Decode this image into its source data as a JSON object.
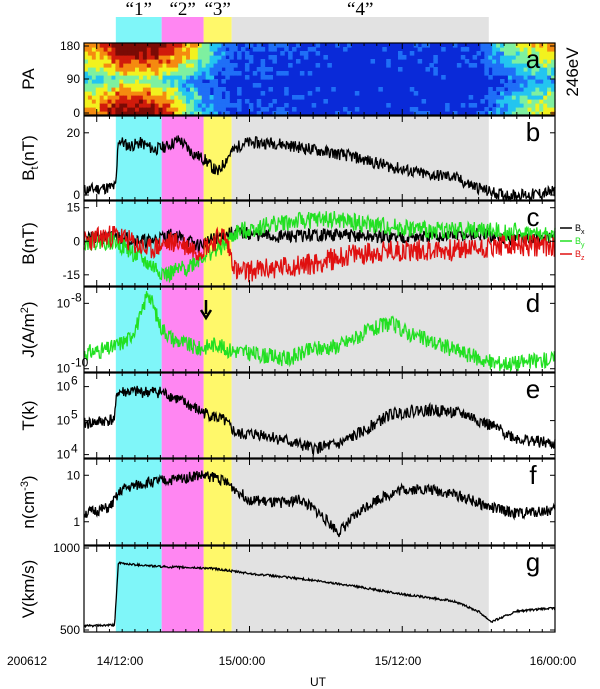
{
  "figure": {
    "date_label": "200612",
    "x_axis_label": "UT",
    "x_tick_labels": [
      "14/12:00",
      "15/00:00",
      "15/12:00",
      "16/00:00"
    ],
    "energy_label": "246eV"
  },
  "intervals": [
    {
      "label": "“1”",
      "start_h": 1.5,
      "end_h": 5.1,
      "color": "#7ff6f9"
    },
    {
      "label": "“2”",
      "start_h": 5.1,
      "end_h": 8.4,
      "color": "#ff86f2"
    },
    {
      "label": "“3”",
      "start_h": 8.4,
      "end_h": 10.6,
      "color": "#fff86a"
    },
    {
      "label": "“4”",
      "start_h": 10.6,
      "end_h": 30.8,
      "color": "#e2e2e2"
    }
  ],
  "panels": [
    {
      "letter": "a",
      "ylabel": "PA",
      "ticks": [
        "0",
        "90",
        "180"
      ]
    },
    {
      "letter": "b",
      "ylabel": "B",
      "ylabel_sub": "t",
      "ylabel_unit": "(nT)",
      "ticks": [
        "0",
        "20"
      ]
    },
    {
      "letter": "c",
      "ylabel": "B(nT)",
      "ticks": [
        "-15",
        "0",
        "15"
      ]
    },
    {
      "letter": "d",
      "ylabel": "J(A/m",
      "ylabel_sup": "2",
      "ylabel_end": ")",
      "ticks": [
        "10",
        "10"
      ],
      "tick_exps": [
        "-10",
        "-8"
      ]
    },
    {
      "letter": "e",
      "ylabel": "T(k)",
      "ticks": [
        "10",
        "10",
        "10"
      ],
      "tick_exps": [
        "4",
        "5",
        "6"
      ]
    },
    {
      "letter": "f",
      "ylabel": "n(cm",
      "ylabel_sup": "-3",
      "ylabel_end": ")",
      "ticks": [
        "1",
        "10"
      ]
    },
    {
      "letter": "g",
      "ylabel": "V(km/s)",
      "ticks": [
        "500",
        "1000"
      ]
    }
  ],
  "legend": [
    {
      "label": "B",
      "sub": "x",
      "color": "#000000"
    },
    {
      "label": "B",
      "sub": "y",
      "color": "#22e022"
    },
    {
      "label": "B",
      "sub": "z",
      "color": "#e01010"
    }
  ],
  "chart_data": [
    {
      "type": "heatmap",
      "panel": "a",
      "title": "",
      "xlabel": "UT",
      "ylabel": "PA",
      "xlim_h": [
        -1,
        36
      ],
      "ylim": [
        0,
        180
      ],
      "note_values": {
        "columns_h": [
          0,
          1.5,
          3,
          5,
          7,
          9,
          10.5,
          20,
          30,
          32,
          34,
          36
        ],
        "low_pitch_level": [
          0.7,
          0.95,
          1.0,
          0.9,
          0.5,
          0.25,
          0.1,
          0.05,
          0.08,
          0.3,
          0.5,
          0.6
        ],
        "high_pitch_level": [
          0.7,
          0.95,
          1.0,
          0.95,
          0.7,
          0.4,
          0.15,
          0.05,
          0.1,
          0.35,
          0.55,
          0.65
        ]
      }
    },
    {
      "type": "line",
      "panel": "b",
      "ylabel": "Bt (nT)",
      "ylim": [
        0,
        25
      ],
      "x_unit": "hours from 2006-12-14 12:00 UT",
      "x": [
        -1,
        0.5,
        1.5,
        1.7,
        2.5,
        3.5,
        4.5,
        5.5,
        6.5,
        7.5,
        8.5,
        9.5,
        10.5,
        11.5,
        14,
        17,
        20,
        23,
        26,
        28,
        29,
        30.8,
        32,
        34,
        36
      ],
      "values": [
        3,
        3.5,
        4,
        18,
        16,
        17,
        15,
        16,
        18,
        14,
        12,
        8,
        14,
        17,
        17,
        15,
        13,
        10,
        7.5,
        7,
        5,
        2.5,
        1.5,
        1.5,
        2.5
      ],
      "noise": 1.8
    },
    {
      "type": "line",
      "panel": "c",
      "ylim": [
        -20,
        18
      ],
      "x_unit": "hours from 2006-12-14 12:00 UT",
      "series": [
        {
          "name": "Bx",
          "color": "#000000",
          "x": [
            -1,
            1.5,
            4,
            6,
            8,
            10,
            11,
            14,
            18,
            22,
            26,
            30,
            33,
            36
          ],
          "values": [
            1,
            2,
            0,
            3,
            -2,
            3,
            4,
            2,
            3,
            2,
            2,
            3,
            1,
            2
          ],
          "noise": 3
        },
        {
          "name": "By",
          "color": "#22e022",
          "x": [
            -1,
            1.5,
            4,
            5.5,
            7,
            8.5,
            10,
            11,
            14,
            18,
            22,
            26,
            30,
            33,
            36
          ],
          "values": [
            0,
            0,
            -10,
            -15,
            -12,
            -6,
            -2,
            4,
            8,
            10,
            7,
            5,
            5,
            4,
            2
          ],
          "noise": 4
        },
        {
          "name": "Bz",
          "color": "#e01010",
          "x": [
            -1,
            1.5,
            4,
            6,
            8,
            10,
            11,
            14,
            17,
            20,
            24,
            28,
            32,
            36
          ],
          "values": [
            0,
            3,
            -4,
            0,
            -4,
            3,
            -14,
            -12,
            -10,
            -6,
            -4,
            -4,
            -2,
            -2
          ],
          "noise": 5
        }
      ]
    },
    {
      "type": "line",
      "panel": "d",
      "ylabel": "J (A/m^2)",
      "log": true,
      "x_unit": "hours from 2006-12-14 12:00 UT",
      "x": [
        -1,
        1,
        2.5,
        3.5,
        4,
        5,
        6,
        8,
        9.5,
        10,
        12,
        15,
        17,
        19,
        21,
        23,
        25,
        28,
        31,
        33,
        36
      ],
      "values": [
        3e-10,
        4e-10,
        8e-10,
        4e-09,
        2.5e-08,
        2e-09,
        8e-10,
        4e-10,
        6e-10,
        4e-10,
        3e-10,
        2e-10,
        4e-10,
        5e-10,
        1.2e-09,
        2.5e-09,
        1e-09,
        4e-10,
        1.5e-10,
        1.5e-10,
        2e-10
      ],
      "noise_dex": 0.25
    },
    {
      "type": "line",
      "panel": "e",
      "ylabel": "T (k)",
      "log": true,
      "x_unit": "hours from 2006-12-14 12:00 UT",
      "x": [
        -1,
        1.4,
        1.6,
        5,
        6,
        8,
        10,
        11,
        13,
        15,
        17,
        19,
        21,
        23,
        25,
        27,
        29,
        31,
        33,
        36
      ],
      "values": [
        80000.0,
        110000.0,
        700000.0,
        700000.0,
        500000.0,
        200000.0,
        100000.0,
        40000.0,
        40000.0,
        25000.0,
        15000.0,
        20000.0,
        50000.0,
        150000.0,
        200000.0,
        200000.0,
        150000.0,
        70000.0,
        30000.0,
        20000.0
      ],
      "noise_dex": 0.18
    },
    {
      "type": "line",
      "panel": "f",
      "ylabel": "n (cm^-3)",
      "log": true,
      "x_unit": "hours from 2006-12-14 12:00 UT",
      "x": [
        -1,
        1,
        2,
        4,
        6,
        8,
        9.5,
        10.5,
        12,
        14,
        16,
        17.5,
        19,
        21,
        22,
        24,
        26,
        28,
        31,
        33,
        36
      ],
      "values": [
        1.5,
        2,
        5,
        7,
        8,
        10,
        9,
        6,
        3,
        2.5,
        3,
        1.5,
        0.6,
        2,
        3,
        5,
        5,
        4,
        2,
        1.5,
        1.8
      ],
      "noise_dex": 0.12
    },
    {
      "type": "line",
      "panel": "g",
      "ylabel": "V (km/s)",
      "ylim": [
        500,
        1000
      ],
      "x_unit": "hours from 2006-12-14 12:00 UT",
      "x": [
        -1,
        1.4,
        1.7,
        5,
        9,
        12,
        16,
        20,
        24,
        28,
        30,
        31,
        33,
        36
      ],
      "values": [
        535,
        540,
        900,
        880,
        870,
        840,
        810,
        770,
        720,
        680,
        620,
        560,
        620,
        640
      ],
      "noise": 6
    }
  ]
}
